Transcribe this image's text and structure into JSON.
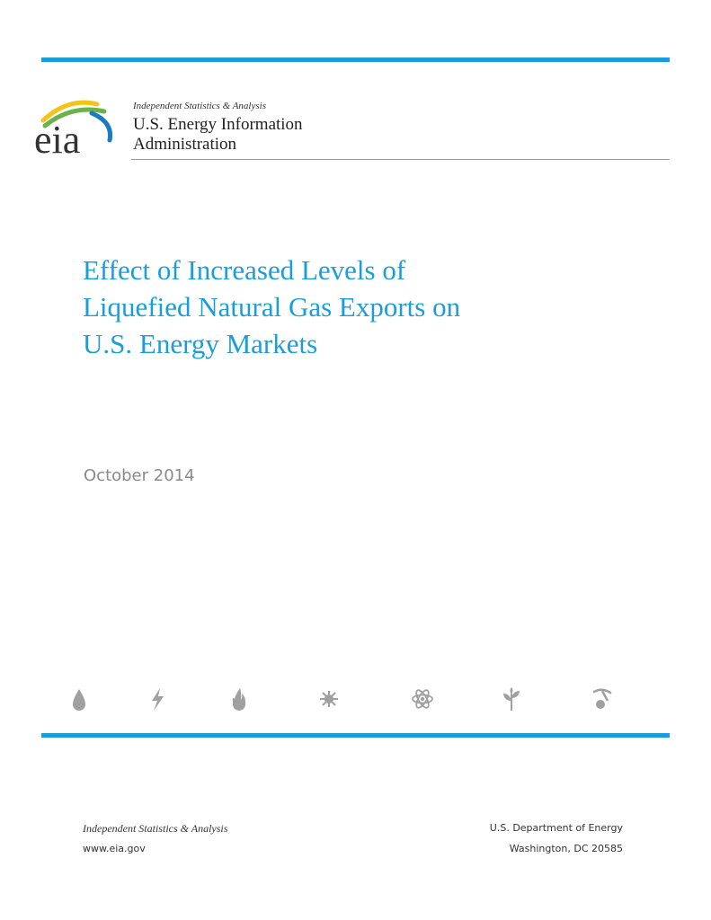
{
  "header": {
    "logo_text": "eia",
    "tagline": "Independent Statistics & Analysis",
    "agency_line1": "U.S. Energy Information",
    "agency_line2": "Administration"
  },
  "report": {
    "title_lines": [
      "Effect of Increased Levels of",
      "Liquefied Natural Gas Exports on",
      "U.S. Energy Markets"
    ],
    "date": "October 2014"
  },
  "icons": [
    "oil-drop-icon",
    "electricity-bolt-icon",
    "natural-gas-flame-icon",
    "coal-icon",
    "nuclear-atom-icon",
    "renewable-plant-icon",
    "mining-pick-icon"
  ],
  "footer": {
    "tagline": "Independent Statistics & Analysis",
    "url": "www.eia.gov",
    "department": "U.S. Department of Energy",
    "address": "Washington, DC 20585"
  },
  "colors": {
    "accent": "#1a9dd9",
    "icon_gray": "#a0a0a0",
    "date_gray": "#8a8a8a",
    "logo_yellow": "#f2c418",
    "logo_green": "#6bb24a",
    "logo_blue": "#1a7ac4"
  }
}
